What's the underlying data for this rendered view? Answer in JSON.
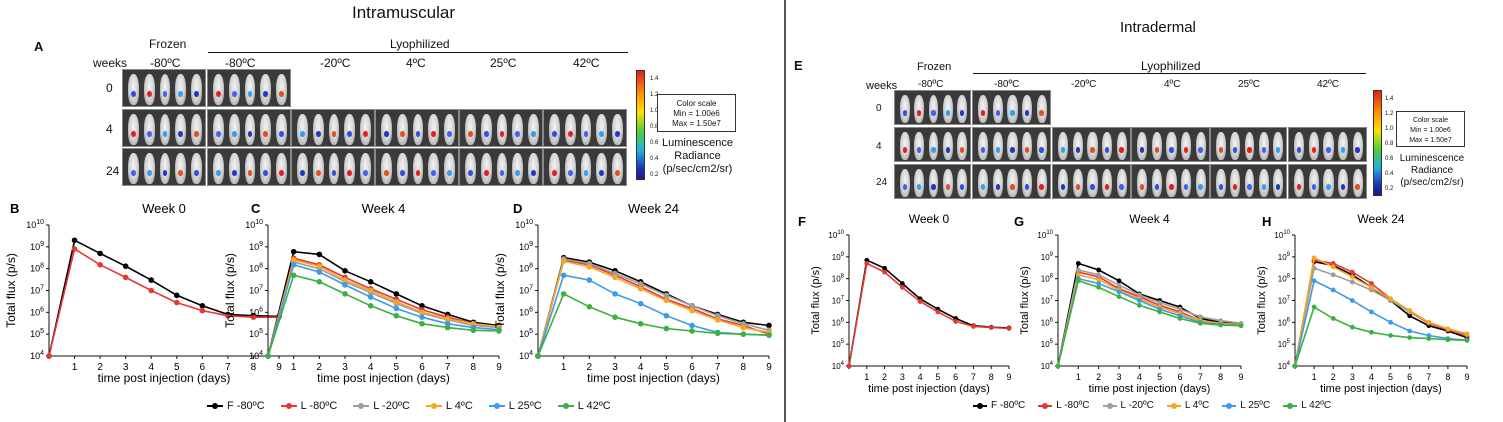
{
  "left_panel": {
    "title": "Intramuscular",
    "image_panel_letter": "A",
    "frozen_label": "Frozen",
    "lyophilized_label": "Lyophilized",
    "weeks_label": "weeks",
    "temps": [
      "-80ºC",
      "-80ºC",
      "-20ºC",
      "4ºC",
      "25ºC",
      "42ºC"
    ],
    "weeks": [
      "0",
      "4",
      "24"
    ],
    "scale_box": {
      "line1": "Color scale",
      "line2": "Min = 1.00e6",
      "line3": "Max = 1.50e7"
    },
    "colorbar_ticks": [
      "1.4",
      "1.2",
      "1.0",
      "0.8",
      "0.6",
      "0.4",
      "0.2"
    ],
    "radiance_label": {
      "line1": "Luminescence",
      "line2": "Radiance",
      "line3": "(p/sec/cm2/sr)"
    }
  },
  "right_panel": {
    "title": "Intradermal",
    "image_panel_letter": "E",
    "frozen_label": "Frozen",
    "lyophilized_label": "Lyophilized",
    "weeks_label": "weeks",
    "temps": [
      "-80ºC",
      "-80ºC",
      "-20ºC",
      "4ºC",
      "25ºC",
      "42ºC"
    ],
    "weeks": [
      "0",
      "4",
      "24"
    ],
    "scale_box": {
      "line1": "Color scale",
      "line2": "Min = 1.00e6",
      "line3": "Max = 1.50e7"
    },
    "colorbar_ticks": [
      "1.4",
      "1.2",
      "1.0",
      "0.8",
      "0.6",
      "0.4",
      "0.2"
    ],
    "radiance_label": {
      "line1": "Luminescence",
      "line2": "Radiance",
      "line3": "(p/sec/cm2/sr)"
    }
  },
  "legend": [
    {
      "label": "F -80ºC",
      "color": "#000000"
    },
    {
      "label": "L -80ºC",
      "color": "#e53935"
    },
    {
      "label": "L -20ºC",
      "color": "#9e9e9e"
    },
    {
      "label": "L 4ºC",
      "color": "#f5a623"
    },
    {
      "label": "L 25ºC",
      "color": "#3d9be9"
    },
    {
      "label": "L 42ºC",
      "color": "#3cb043"
    }
  ],
  "chart_data": [
    {
      "panel": "B",
      "type": "line",
      "title": "Week 0",
      "xlabel": "time post injection (days)",
      "ylabel": "Total flux (p/s)",
      "x": [
        0,
        1,
        2,
        3,
        4,
        5,
        6,
        7,
        8,
        9
      ],
      "xlim": [
        0,
        9
      ],
      "ylim_log10": [
        4,
        10
      ],
      "yscale": "log",
      "series": [
        {
          "name": "F -80ºC",
          "values": [
            10000,
            2000000000,
            500000000,
            130000000,
            30000000,
            6000000,
            2000000,
            800000,
            700000,
            650000
          ]
        },
        {
          "name": "L -80ºC",
          "values": [
            10000,
            800000000,
            150000000,
            40000000,
            10000000,
            2800000,
            1200000,
            700000,
            600000,
            600000
          ]
        }
      ]
    },
    {
      "panel": "C",
      "type": "line",
      "title": "Week 4",
      "xlabel": "time post injection (days)",
      "ylabel": "Total flux (p/s)",
      "x": [
        0,
        1,
        2,
        3,
        4,
        5,
        6,
        7,
        8,
        9
      ],
      "xlim": [
        0,
        9
      ],
      "ylim_log10": [
        4,
        10
      ],
      "yscale": "log",
      "series": [
        {
          "name": "F -80ºC",
          "values": [
            10000,
            600000000,
            450000000,
            80000000,
            25000000,
            7000000,
            2000000,
            800000,
            350000,
            250000
          ]
        },
        {
          "name": "L -80ºC",
          "values": [
            10000,
            300000000,
            150000000,
            40000000,
            12000000,
            4000000,
            1300000,
            600000,
            300000,
            220000
          ]
        },
        {
          "name": "L -20ºC",
          "values": [
            10000,
            200000000,
            100000000,
            25000000,
            8000000,
            2500000,
            900000,
            450000,
            250000,
            200000
          ]
        },
        {
          "name": "L 4ºC",
          "values": [
            10000,
            250000000,
            130000000,
            30000000,
            10000000,
            3000000,
            1000000,
            500000,
            300000,
            220000
          ]
        },
        {
          "name": "L 25ºC",
          "values": [
            10000,
            150000000,
            70000000,
            18000000,
            5000000,
            1500000,
            600000,
            300000,
            200000,
            160000
          ]
        },
        {
          "name": "L 42ºC",
          "values": [
            10000,
            50000000,
            25000000,
            7000000,
            2000000,
            700000,
            300000,
            200000,
            150000,
            140000
          ]
        }
      ]
    },
    {
      "panel": "D",
      "type": "line",
      "title": "Week 24",
      "xlabel": "time post injection (days)",
      "ylabel": "Total flux (p/s)",
      "x": [
        0,
        1,
        2,
        3,
        4,
        5,
        6,
        7,
        8,
        9
      ],
      "xlim": [
        0,
        9
      ],
      "ylim_log10": [
        4,
        10
      ],
      "yscale": "log",
      "series": [
        {
          "name": "F -80ºC",
          "values": [
            10000,
            320000000,
            200000000,
            80000000,
            25000000,
            7000000,
            2000000,
            800000,
            350000,
            250000
          ]
        },
        {
          "name": "L -80ºC",
          "values": [
            10000,
            250000000,
            150000000,
            50000000,
            15000000,
            4000000,
            1500000,
            500000,
            250000,
            100000
          ]
        },
        {
          "name": "L -20ºC",
          "values": [
            10000,
            280000000,
            170000000,
            60000000,
            20000000,
            6000000,
            2000000,
            700000,
            300000,
            150000
          ]
        },
        {
          "name": "L 4ºC",
          "values": [
            10000,
            220000000,
            120000000,
            40000000,
            12000000,
            3500000,
            1200000,
            450000,
            200000,
            120000
          ]
        },
        {
          "name": "L 25ºC",
          "values": [
            10000,
            50000000,
            30000000,
            7000000,
            2500000,
            700000,
            250000,
            120000,
            100000,
            90000
          ]
        },
        {
          "name": "L 42ºC",
          "values": [
            10000,
            7000000,
            1800000,
            600000,
            300000,
            180000,
            140000,
            110000,
            100000,
            90000
          ]
        }
      ]
    },
    {
      "panel": "F",
      "type": "line",
      "title": "Week 0",
      "xlabel": "time post injection (days)",
      "ylabel": "Total flux (p/s)",
      "x": [
        0,
        1,
        2,
        3,
        4,
        5,
        6,
        7,
        8,
        9
      ],
      "xlim": [
        0,
        9
      ],
      "ylim_log10": [
        4,
        10
      ],
      "yscale": "log",
      "series": [
        {
          "name": "F -80ºC",
          "values": [
            10000,
            700000000,
            300000000,
            60000000,
            12000000,
            4000000,
            1500000,
            700000,
            600000,
            550000
          ]
        },
        {
          "name": "L -80ºC",
          "values": [
            10000,
            500000000,
            200000000,
            40000000,
            9000000,
            3000000,
            1100000,
            650000,
            580000,
            520000
          ]
        }
      ]
    },
    {
      "panel": "G",
      "type": "line",
      "title": "Week 4",
      "xlabel": "time post injection (days)",
      "ylabel": "Total flux (p/s)",
      "x": [
        0,
        1,
        2,
        3,
        4,
        5,
        6,
        7,
        8,
        9
      ],
      "xlim": [
        0,
        9
      ],
      "ylim_log10": [
        4,
        10
      ],
      "yscale": "log",
      "series": [
        {
          "name": "F -80ºC",
          "values": [
            10000,
            500000000,
            250000000,
            80000000,
            20000000,
            10000000,
            5000000,
            1500000,
            1000000,
            800000
          ]
        },
        {
          "name": "L -80ºC",
          "values": [
            10000,
            200000000,
            120000000,
            35000000,
            15000000,
            6000000,
            3000000,
            1200000,
            900000,
            800000
          ]
        },
        {
          "name": "L -20ºC",
          "values": [
            10000,
            250000000,
            150000000,
            50000000,
            18000000,
            8000000,
            4000000,
            1800000,
            1200000,
            900000
          ]
        },
        {
          "name": "L 4ºC",
          "values": [
            10000,
            150000000,
            90000000,
            30000000,
            12000000,
            5000000,
            2500000,
            1200000,
            900000,
            750000
          ]
        },
        {
          "name": "L 25ºC",
          "values": [
            10000,
            100000000,
            60000000,
            25000000,
            10000000,
            4000000,
            2000000,
            1000000,
            800000,
            700000
          ]
        },
        {
          "name": "L 42ºC",
          "values": [
            10000,
            80000000,
            40000000,
            15000000,
            6000000,
            3000000,
            1500000,
            900000,
            750000,
            700000
          ]
        }
      ]
    },
    {
      "panel": "H",
      "type": "line",
      "title": "Week 24",
      "xlabel": "time post injection (days)",
      "ylabel": "Total flux (p/s)",
      "x": [
        0,
        1,
        2,
        3,
        4,
        5,
        6,
        7,
        8,
        9
      ],
      "xlim": [
        0,
        9
      ],
      "ylim_log10": [
        4,
        10
      ],
      "yscale": "log",
      "series": [
        {
          "name": "F -80ºC",
          "values": [
            10000,
            600000000,
            400000000,
            150000000,
            40000000,
            10000000,
            2000000,
            700000,
            400000,
            200000
          ]
        },
        {
          "name": "L -80ºC",
          "values": [
            10000,
            700000000,
            500000000,
            200000000,
            60000000,
            12000000,
            3000000,
            900000,
            450000,
            250000
          ]
        },
        {
          "name": "L -20ºC",
          "values": [
            10000,
            300000000,
            150000000,
            70000000,
            30000000,
            10000000,
            3000000,
            1000000,
            500000,
            280000
          ]
        },
        {
          "name": "L 4ºC",
          "values": [
            10000,
            900000000,
            350000000,
            120000000,
            40000000,
            12000000,
            3500000,
            1000000,
            500000,
            300000
          ]
        },
        {
          "name": "L 25ºC",
          "values": [
            10000,
            80000000,
            30000000,
            10000000,
            3000000,
            1000000,
            400000,
            250000,
            180000,
            150000
          ]
        },
        {
          "name": "L 42ºC",
          "values": [
            10000,
            5000000,
            1500000,
            600000,
            350000,
            250000,
            200000,
            180000,
            160000,
            150000
          ]
        }
      ]
    }
  ]
}
